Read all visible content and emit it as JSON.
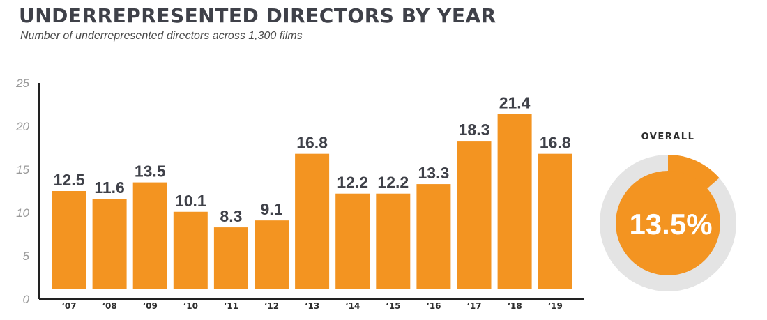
{
  "title": "UNDERREPRESENTED DIRECTORS BY YEAR",
  "subtitle": "Number of underrepresented directors across 1,300 films",
  "chart_data": {
    "type": "bar",
    "title": "UNDERREPRESENTED DIRECTORS BY YEAR",
    "subtitle": "Number of underrepresented directors across 1,300 films",
    "categories": [
      "‘07",
      "‘08",
      "‘09",
      "‘10",
      "‘11",
      "‘12",
      "‘13",
      "‘14",
      "‘15",
      "‘16",
      "‘17",
      "‘18",
      "‘19"
    ],
    "values": [
      12.5,
      11.6,
      13.5,
      10.1,
      8.3,
      9.1,
      16.8,
      12.2,
      12.2,
      13.3,
      18.3,
      21.4,
      16.8
    ],
    "data_labels": [
      "12.5",
      "11.6",
      "13.5",
      "10.1",
      "8.3",
      "9.1",
      "16.8",
      "12.2",
      "12.2",
      "13.3",
      "18.3",
      "21.4",
      "16.8"
    ],
    "ylim": [
      0,
      25
    ],
    "yticks": [
      0,
      5,
      10,
      15,
      20,
      25
    ],
    "grid": false,
    "bar_color": "#f39421"
  },
  "overall": {
    "label": "OVERALL",
    "value": 13.5,
    "value_text": "13.5%",
    "fill_color": "#f39421",
    "track_color": "#e4e4e4"
  }
}
